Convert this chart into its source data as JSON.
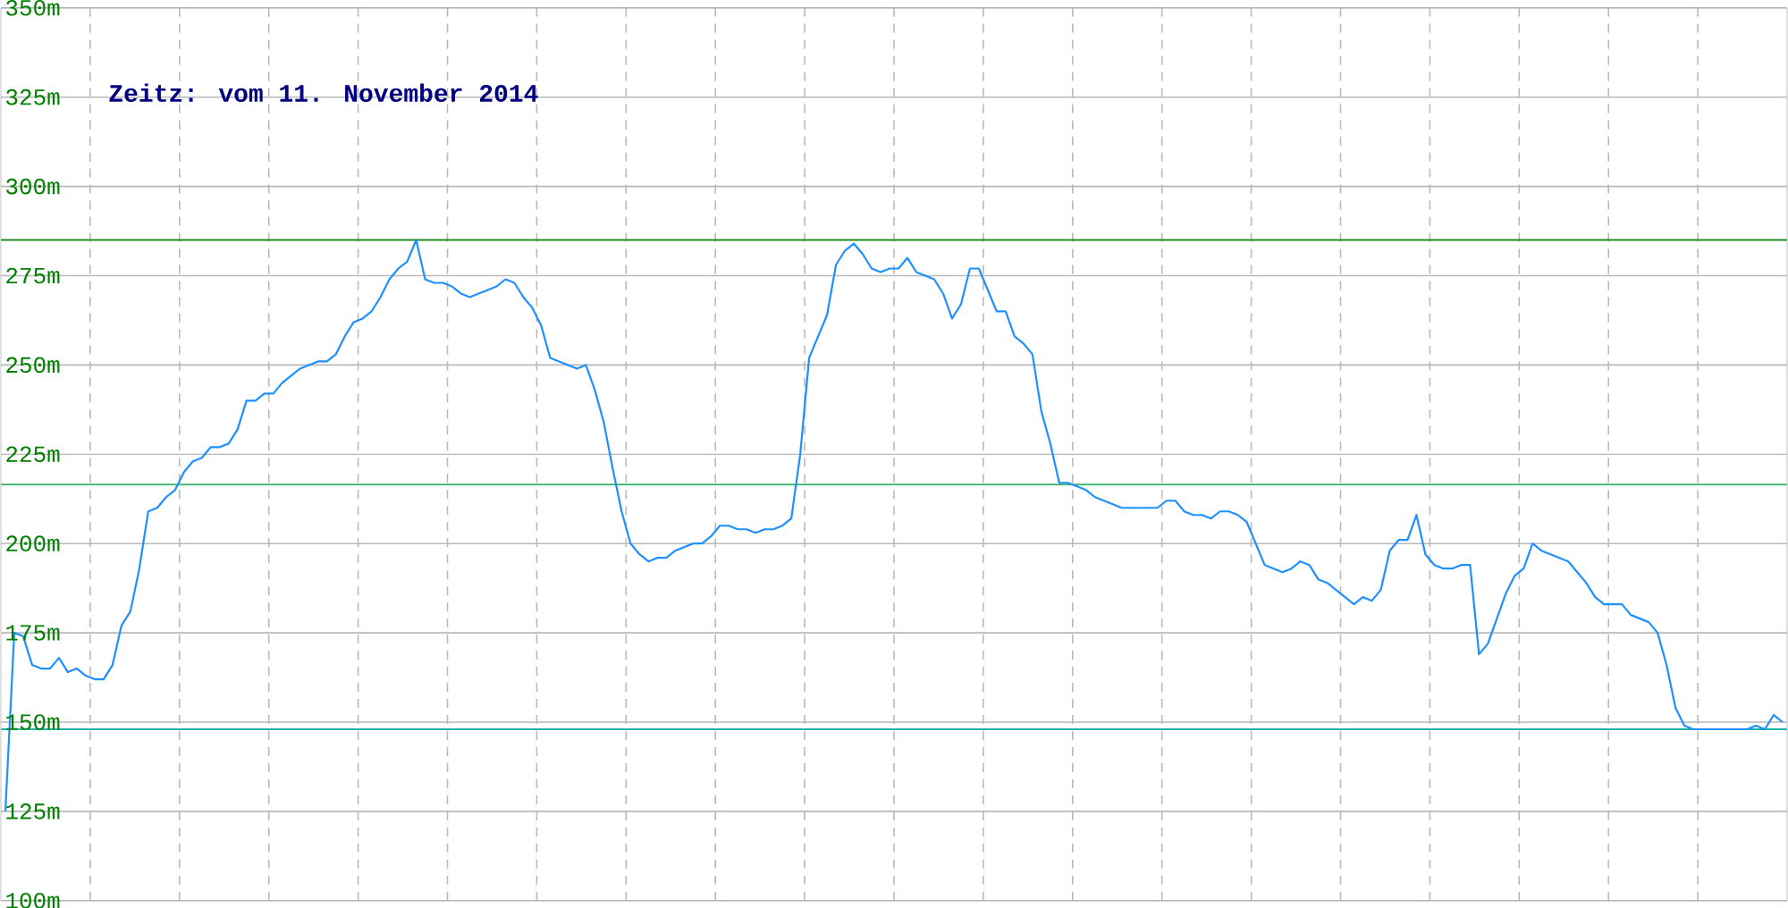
{
  "chart_data": {
    "type": "line",
    "title": "Zeitz: vom 11. November 2014",
    "categories": [
      null,
      null,
      null,
      null,
      null,
      null,
      null,
      null,
      null,
      null,
      null,
      null,
      null,
      null,
      null,
      null,
      null,
      null,
      null,
      null,
      null,
      null,
      null,
      null,
      null,
      null,
      null,
      null,
      null,
      null,
      null,
      null,
      null,
      null,
      null,
      null,
      null,
      null,
      null,
      null,
      null,
      null,
      null,
      null,
      null,
      null,
      null,
      null,
      null,
      null,
      null,
      null,
      null,
      null,
      null,
      null,
      null,
      null,
      null,
      null,
      null,
      null,
      null,
      null,
      null,
      null,
      null,
      null,
      null,
      null,
      null,
      null,
      null,
      null,
      null,
      null,
      null,
      null,
      null,
      null,
      null,
      null,
      null,
      null,
      null,
      null,
      null,
      null,
      null,
      null,
      null,
      null,
      null,
      null,
      null,
      null,
      null,
      null,
      null,
      null,
      null,
      null,
      null,
      null,
      null,
      null,
      null,
      null,
      null,
      null,
      null,
      null,
      null,
      null,
      null,
      null,
      null,
      null,
      null,
      null,
      null,
      null,
      null,
      null,
      null,
      null,
      null,
      null,
      null,
      null,
      null,
      null,
      null,
      null,
      null,
      null,
      null,
      null,
      null,
      null,
      null,
      null,
      null,
      null,
      null,
      null,
      null,
      null,
      null,
      null,
      null,
      null,
      null,
      null,
      null,
      null,
      null,
      null,
      null,
      null,
      null,
      null,
      null,
      null,
      null,
      null,
      null,
      null,
      null,
      null,
      null,
      null,
      null,
      null,
      null,
      null,
      null,
      null,
      null,
      null,
      null,
      null,
      null,
      null,
      null,
      null,
      null,
      null,
      null,
      null,
      null,
      null,
      null,
      null,
      null,
      null,
      null,
      null,
      null,
      null
    ],
    "ylim": [
      100,
      350
    ],
    "yticks": [
      {
        "value": 100,
        "label": "100m"
      },
      {
        "value": 125,
        "label": "125m"
      },
      {
        "value": 150,
        "label": "150m"
      },
      {
        "value": 175,
        "label": "175m"
      },
      {
        "value": 200,
        "label": "200m"
      },
      {
        "value": 225,
        "label": "225m"
      },
      {
        "value": 250,
        "label": "250m"
      },
      {
        "value": 275,
        "label": "275m"
      },
      {
        "value": 300,
        "label": "300m"
      },
      {
        "value": 325,
        "label": "325m"
      },
      {
        "value": 350,
        "label": "350m"
      }
    ],
    "tick_labels": "y",
    "grid": true,
    "marker": "none",
    "line_style": "solid",
    "ref_lines": [
      {
        "axis": "y",
        "value": 285,
        "color": "#228b22"
      },
      {
        "axis": "y",
        "value": 216.5,
        "color": "#3cb371"
      },
      {
        "axis": "y",
        "value": 148,
        "color": "#20b2aa"
      }
    ],
    "series": [
      {
        "color": "#1e90ff",
        "values": [
          125,
          175,
          174,
          166,
          165,
          165,
          168,
          164,
          165,
          163,
          162,
          162,
          166,
          177,
          181,
          193,
          209,
          210,
          213,
          215,
          220,
          223,
          224,
          227,
          227,
          228,
          232,
          240,
          240,
          242,
          242,
          245,
          247,
          249,
          250,
          251,
          251,
          253,
          258,
          262,
          263,
          265,
          269,
          274,
          277,
          279,
          285,
          274,
          273,
          273,
          272,
          270,
          269,
          270,
          271,
          272,
          274,
          273,
          269,
          266,
          261,
          252,
          251,
          250,
          249,
          250,
          243,
          234,
          221,
          209,
          200,
          197,
          195,
          196,
          196,
          198,
          199,
          200,
          200,
          202,
          205,
          205,
          204,
          204,
          203,
          204,
          204,
          205,
          207,
          225,
          252,
          258,
          264,
          278,
          282,
          284,
          281,
          277,
          276,
          277,
          277,
          280,
          276,
          275,
          274,
          270,
          263,
          267,
          277,
          277,
          271,
          265,
          265,
          258,
          256,
          253,
          237,
          228,
          217,
          217,
          216,
          215,
          213,
          212,
          211,
          210,
          210,
          210,
          210,
          210,
          212,
          212,
          209,
          208,
          208,
          207,
          209,
          209,
          208,
          206,
          200,
          194,
          193,
          192,
          193,
          195,
          194,
          190,
          189,
          187,
          185,
          183,
          185,
          184,
          187,
          198,
          201,
          201,
          208,
          197,
          194,
          193,
          193,
          194,
          194,
          169,
          172,
          179,
          186,
          191,
          193,
          200,
          198,
          197,
          196,
          195,
          192,
          189,
          185,
          183,
          183,
          183,
          180,
          179,
          178,
          175,
          166,
          154,
          149,
          148,
          148,
          148,
          148,
          148,
          148,
          148,
          149,
          148,
          152,
          150
        ]
      }
    ]
  }
}
